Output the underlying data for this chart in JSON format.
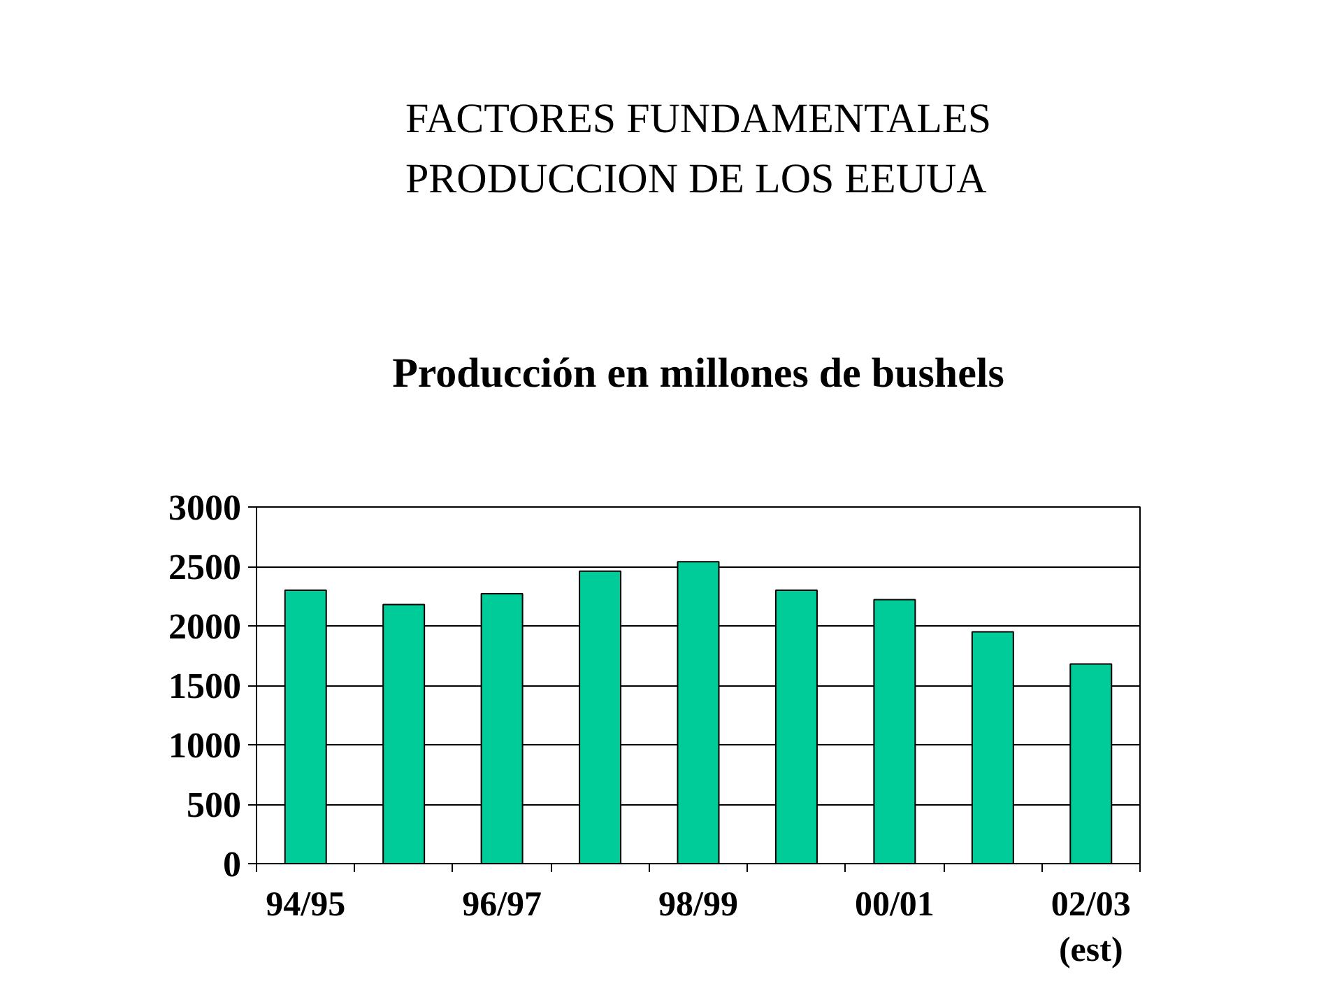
{
  "chart_data": {
    "type": "bar",
    "title": "FACTORES FUNDAMENTALES\nPRODUCCION DE LOS EEUUA",
    "subtitle": "Producción en millones de bushels",
    "categories": [
      "94/95",
      null,
      "96/97",
      null,
      "98/99",
      null,
      "00/01",
      null,
      "02/03\n(est)"
    ],
    "values": [
      2300,
      2180,
      2270,
      2460,
      2540,
      2300,
      2220,
      1950,
      1680
    ],
    "color": "#00cc99",
    "ylim": [
      0,
      3000
    ],
    "yticks": [
      0,
      500,
      1000,
      1500,
      2000,
      2500,
      3000
    ],
    "grid": "y"
  }
}
